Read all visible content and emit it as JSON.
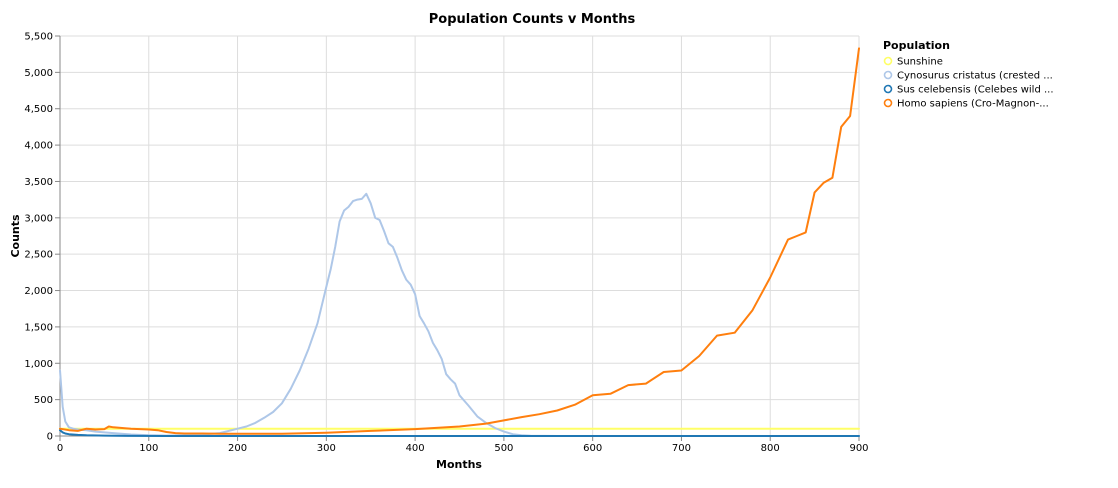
{
  "chart_data": {
    "type": "line",
    "title": "Population Counts v Months",
    "xlabel": "Months",
    "ylabel": "Counts",
    "xlim": [
      0,
      900
    ],
    "ylim": [
      0,
      5500
    ],
    "x_ticks": [
      "0",
      "100",
      "200",
      "300",
      "400",
      "500",
      "600",
      "700",
      "800",
      "900"
    ],
    "y_ticks": [
      "0",
      "500",
      "1,000",
      "1,500",
      "2,000",
      "2,500",
      "3,000",
      "3,500",
      "4,000",
      "4,500",
      "5,000",
      "5,500"
    ],
    "grid": true,
    "legend": {
      "title": "Population",
      "position": "right",
      "labels": [
        "Sunshine",
        "Cynosurus cristatus (crested ...",
        "Sus celebensis (Celebes wild ...",
        "Homo sapiens (Cro-Magnon-..."
      ]
    },
    "series": [
      {
        "name": "Sunshine",
        "color": "#ffff66",
        "x": [
          0,
          900
        ],
        "y": [
          100,
          100
        ]
      },
      {
        "name": "Cynosurus cristatus (crested ...",
        "color": "#aec7e8",
        "x": [
          0,
          3,
          6,
          10,
          15,
          20,
          30,
          40,
          60,
          80,
          100,
          120,
          140,
          160,
          180,
          200,
          210,
          220,
          230,
          240,
          250,
          260,
          270,
          280,
          290,
          300,
          305,
          310,
          315,
          320,
          325,
          330,
          335,
          340,
          345,
          350,
          355,
          360,
          365,
          370,
          375,
          380,
          385,
          390,
          395,
          400,
          405,
          410,
          415,
          420,
          425,
          430,
          435,
          440,
          445,
          450,
          455,
          460,
          470,
          480,
          490,
          500,
          510,
          520,
          530,
          560,
          900
        ],
        "y": [
          900,
          400,
          200,
          120,
          100,
          90,
          80,
          60,
          40,
          20,
          10,
          5,
          10,
          20,
          40,
          100,
          130,
          180,
          250,
          330,
          450,
          650,
          900,
          1200,
          1550,
          2050,
          2300,
          2600,
          2950,
          3100,
          3150,
          3230,
          3250,
          3260,
          3330,
          3200,
          3000,
          2970,
          2820,
          2650,
          2600,
          2450,
          2280,
          2150,
          2080,
          1950,
          1650,
          1550,
          1440,
          1280,
          1180,
          1060,
          850,
          780,
          720,
          560,
          490,
          420,
          270,
          180,
          110,
          60,
          25,
          10,
          3,
          0,
          0
        ]
      },
      {
        "name": "Sus celebensis (Celebes wild ...",
        "color": "#1f77b4",
        "x": [
          0,
          3,
          6,
          10,
          20,
          30,
          50,
          80,
          120,
          200,
          900
        ],
        "y": [
          80,
          50,
          35,
          25,
          15,
          10,
          5,
          2,
          0,
          0,
          0
        ]
      },
      {
        "name": "Homo sapiens (Cro-Magnon-...",
        "color": "#ff7f0e",
        "x": [
          0,
          10,
          20,
          30,
          40,
          50,
          55,
          60,
          70,
          80,
          90,
          100,
          110,
          120,
          130,
          140,
          160,
          180,
          200,
          250,
          300,
          350,
          400,
          450,
          480,
          500,
          520,
          540,
          560,
          580,
          600,
          620,
          640,
          660,
          680,
          700,
          720,
          740,
          760,
          780,
          800,
          820,
          830,
          840,
          850,
          860,
          870,
          880,
          890,
          900
        ],
        "y": [
          100,
          80,
          70,
          100,
          90,
          95,
          130,
          120,
          110,
          100,
          95,
          90,
          80,
          55,
          40,
          35,
          35,
          30,
          30,
          30,
          45,
          70,
          95,
          130,
          170,
          215,
          260,
          300,
          350,
          430,
          560,
          580,
          700,
          720,
          880,
          900,
          1100,
          1380,
          1420,
          1730,
          2180,
          2700,
          2750,
          2800,
          3350,
          3480,
          3550,
          4250,
          4400,
          5330
        ]
      }
    ]
  }
}
